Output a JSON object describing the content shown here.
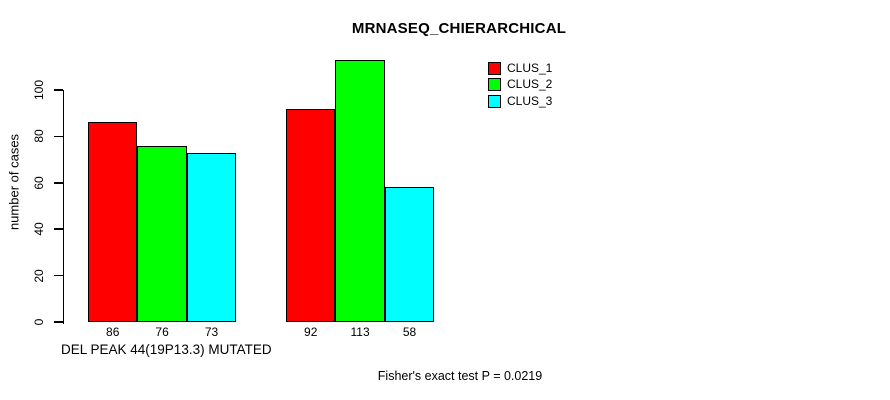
{
  "chart_data": {
    "type": "bar",
    "title": "MRNASEQ_CHIERARCHICAL",
    "ylabel": "number of cases",
    "xlabel": "DEL PEAK 44(19P13.3) MUTATED",
    "annotation": "Fisher's exact test P = 0.0219",
    "yticks": [
      0,
      20,
      40,
      60,
      80,
      100
    ],
    "ylim": [
      0,
      117
    ],
    "grid": false,
    "show_value_labels": true,
    "legend_position": "top-right",
    "n_groups": 2,
    "series": [
      {
        "name": "CLUS_1",
        "color": "#ff0000",
        "values": [
          86,
          92
        ]
      },
      {
        "name": "CLUS_2",
        "color": "#00ff00",
        "values": [
          76,
          113
        ]
      },
      {
        "name": "CLUS_3",
        "color": "#00ffff",
        "values": [
          73,
          58
        ]
      }
    ],
    "legend": [
      "CLUS_1",
      "CLUS_2",
      "CLUS_3"
    ]
  },
  "colors": {
    "background": "#ffffff",
    "axis": "#000000",
    "text": "#000000"
  }
}
